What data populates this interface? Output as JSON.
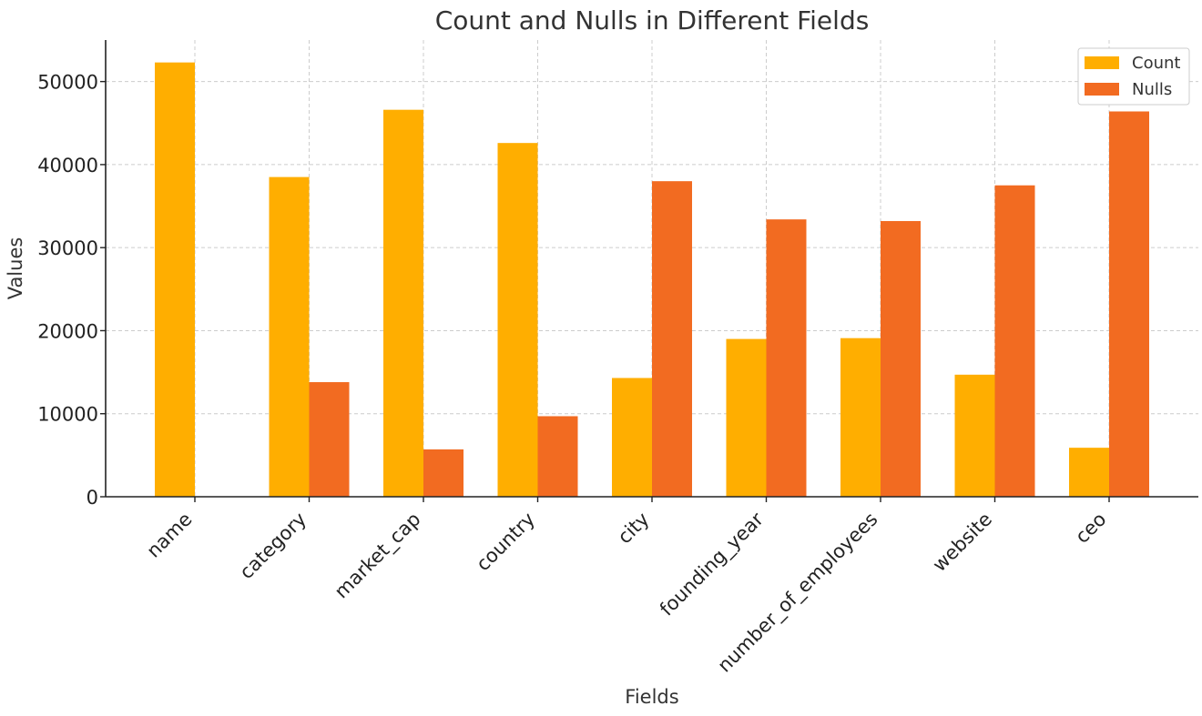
{
  "chart_data": {
    "type": "bar",
    "title": "Count and Nulls in Different Fields",
    "xlabel": "Fields",
    "ylabel": "Values",
    "categories": [
      "name",
      "category",
      "market_cap",
      "country",
      "city",
      "founding_year",
      "number_of_employees",
      "website",
      "ceo"
    ],
    "series": [
      {
        "name": "Count",
        "color": "#ffae00",
        "values": [
          52300,
          38500,
          46600,
          42600,
          14300,
          19000,
          19100,
          14700,
          5900
        ]
      },
      {
        "name": "Nulls",
        "color": "#f26b21",
        "values": [
          0,
          13800,
          5700,
          9700,
          38000,
          33400,
          33200,
          37500,
          46400
        ]
      }
    ],
    "ylim": [
      0,
      55000
    ],
    "yticks": [
      0,
      10000,
      20000,
      30000,
      40000,
      50000
    ],
    "grid": true,
    "legend_position": "top-right"
  }
}
